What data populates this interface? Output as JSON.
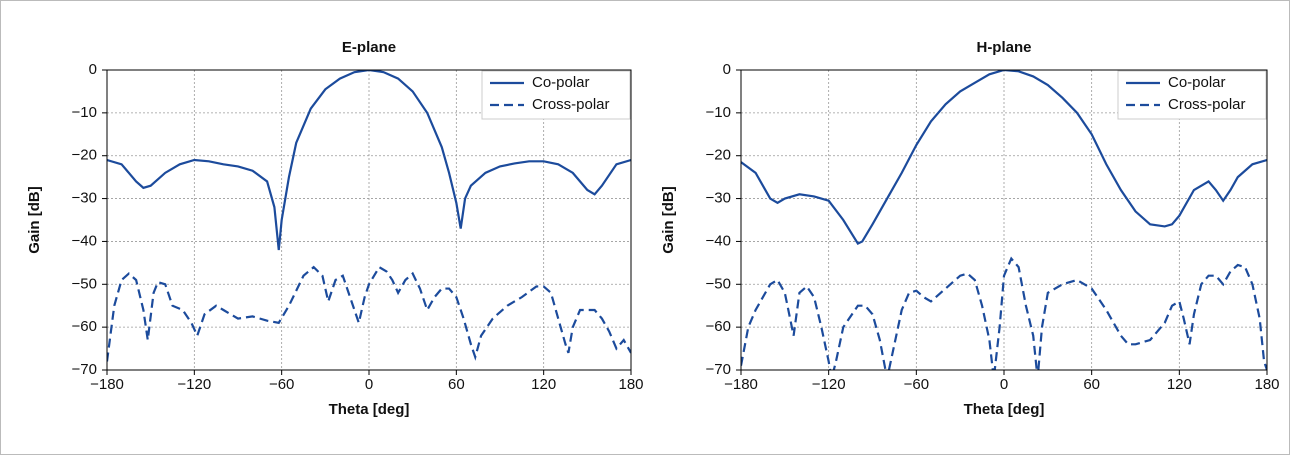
{
  "chart_data": [
    {
      "type": "line",
      "title": "E-plane",
      "xlabel": "Theta [deg]",
      "ylabel": "Gain [dB]",
      "xlim": [
        -180,
        180
      ],
      "ylim": [
        -70,
        0
      ],
      "xticks": [
        {
          "value": -180,
          "label": "−180"
        },
        {
          "value": -120,
          "label": "−120"
        },
        {
          "value": -60,
          "label": "−60"
        },
        0,
        60,
        120,
        180
      ],
      "yticks": [
        0,
        {
          "value": -10,
          "label": "−10"
        },
        {
          "value": -20,
          "label": "−20"
        },
        {
          "value": -30,
          "label": "−30"
        },
        {
          "value": -40,
          "label": "−40"
        },
        {
          "value": -50,
          "label": "−50"
        },
        {
          "value": -60,
          "label": "−60"
        },
        {
          "value": -70,
          "label": "−70"
        }
      ],
      "grid": true,
      "legend": "upper right",
      "series": [
        {
          "name": "Co-polar",
          "color": "#1c4b9c",
          "dashed": false,
          "x": [
            -180,
            -170,
            -160,
            -155,
            -150,
            -140,
            -130,
            -120,
            -110,
            -100,
            -90,
            -80,
            -70,
            -65,
            -62,
            -60,
            -55,
            -50,
            -40,
            -30,
            -20,
            -10,
            0,
            10,
            20,
            30,
            40,
            50,
            55,
            60,
            63,
            66,
            70,
            80,
            90,
            100,
            110,
            120,
            130,
            140,
            150,
            155,
            160,
            170,
            180
          ],
          "values": [
            -21,
            -22,
            -26,
            -27.5,
            -27,
            -24,
            -22,
            -21,
            -21.3,
            -22,
            -22.5,
            -23.5,
            -26,
            -32,
            -42,
            -35,
            -25,
            -17,
            -9,
            -4.5,
            -2,
            -0.5,
            0,
            -0.5,
            -2,
            -5,
            -10,
            -18,
            -24,
            -31,
            -37,
            -30,
            -27,
            -24,
            -22.5,
            -21.8,
            -21.3,
            -21.3,
            -22,
            -24,
            -28,
            -29,
            -27,
            -22,
            -21
          ]
        },
        {
          "name": "Cross-polar",
          "color": "#1c4b9c",
          "dashed": true,
          "x": [
            -180,
            -175,
            -170,
            -165,
            -160,
            -155,
            -152,
            -148,
            -145,
            -140,
            -135,
            -128,
            -122,
            -118,
            -113,
            -105,
            -100,
            -90,
            -80,
            -70,
            -62,
            -55,
            -45,
            -38,
            -32,
            -28,
            -23,
            -18,
            -14,
            -7,
            -3,
            0,
            7,
            12,
            16,
            20,
            25,
            30,
            35,
            40,
            45,
            50,
            55,
            60,
            65,
            70,
            73,
            77,
            85,
            95,
            105,
            115,
            120,
            125,
            130,
            135,
            137,
            140,
            145,
            155,
            160,
            165,
            170,
            175,
            180
          ],
          "values": [
            -68,
            -55,
            -49,
            -47.5,
            -49,
            -56,
            -63,
            -52,
            -49.5,
            -50,
            -55,
            -56,
            -59,
            -62,
            -57,
            -55,
            -56,
            -58,
            -57.5,
            -58.5,
            -59,
            -55,
            -48,
            -46,
            -48,
            -54,
            -49,
            -48,
            -52,
            -59,
            -53,
            -50,
            -46,
            -47,
            -49,
            -52,
            -49,
            -47.5,
            -51,
            -56,
            -53,
            -51,
            -51,
            -53,
            -58,
            -64,
            -67,
            -62,
            -58,
            -55,
            -53,
            -50.5,
            -50.5,
            -52,
            -58,
            -64,
            -66,
            -60,
            -56,
            -56,
            -58,
            -61,
            -65,
            -63,
            -66
          ]
        }
      ]
    },
    {
      "type": "line",
      "title": "H-plane",
      "xlabel": "Theta [deg]",
      "ylabel": "Gain [dB]",
      "xlim": [
        -180,
        180
      ],
      "ylim": [
        -70,
        0
      ],
      "xticks": [
        {
          "value": -180,
          "label": "−180"
        },
        {
          "value": -120,
          "label": "−120"
        },
        {
          "value": -60,
          "label": "−60"
        },
        0,
        60,
        120,
        180
      ],
      "yticks": [
        0,
        {
          "value": -10,
          "label": "−10"
        },
        {
          "value": -20,
          "label": "−20"
        },
        {
          "value": -30,
          "label": "−30"
        },
        {
          "value": -40,
          "label": "−40"
        },
        {
          "value": -50,
          "label": "−50"
        },
        {
          "value": -60,
          "label": "−60"
        },
        {
          "value": -70,
          "label": "−70"
        }
      ],
      "grid": true,
      "legend": "upper right",
      "series": [
        {
          "name": "Co-polar",
          "color": "#1c4b9c",
          "dashed": false,
          "x": [
            -180,
            -170,
            -160,
            -155,
            -150,
            -140,
            -130,
            -120,
            -110,
            -100,
            -97,
            -90,
            -80,
            -70,
            -60,
            -50,
            -40,
            -30,
            -20,
            -10,
            0,
            10,
            20,
            30,
            40,
            50,
            60,
            70,
            80,
            90,
            100,
            110,
            115,
            120,
            130,
            140,
            145,
            150,
            155,
            160,
            170,
            180
          ],
          "values": [
            -21.5,
            -24,
            -30,
            -31,
            -30,
            -29,
            -29.5,
            -30.5,
            -35,
            -40.5,
            -40,
            -36,
            -30,
            -24,
            -17.5,
            -12,
            -8,
            -5,
            -3,
            -1,
            0,
            -0.3,
            -1.5,
            -3.5,
            -6.5,
            -10,
            -15,
            -22,
            -28,
            -33,
            -36,
            -36.5,
            -36,
            -34,
            -28,
            -26,
            -28,
            -30.5,
            -28,
            -25,
            -22,
            -21
          ]
        },
        {
          "name": "Cross-polar",
          "color": "#1c4b9c",
          "dashed": true,
          "x": [
            -180,
            -175,
            -170,
            -160,
            -155,
            -150,
            -147,
            -144,
            -140,
            -135,
            -130,
            -125,
            -120,
            -118,
            -115,
            -110,
            -100,
            -95,
            -90,
            -85,
            -80,
            -75,
            -70,
            -65,
            -60,
            -55,
            -50,
            -40,
            -30,
            -25,
            -20,
            -15,
            -10,
            -7,
            -3,
            0,
            5,
            10,
            15,
            20,
            23,
            26,
            30,
            40,
            50,
            60,
            70,
            80,
            85,
            90,
            100,
            110,
            115,
            120,
            123,
            127,
            130,
            135,
            140,
            145,
            150,
            155,
            160,
            165,
            170,
            175,
            178,
            180
          ],
          "values": [
            -69,
            -60,
            -56,
            -50,
            -49,
            -52,
            -57,
            -62,
            -52,
            -50.5,
            -53,
            -60,
            -68,
            -72,
            -68,
            -60,
            -55,
            -55,
            -57,
            -63,
            -72,
            -64,
            -56,
            -52,
            -51.5,
            -53,
            -54,
            -51,
            -48,
            -47.5,
            -49,
            -55,
            -63,
            -72,
            -60,
            -48,
            -44,
            -46,
            -55,
            -62,
            -72,
            -60,
            -52,
            -50,
            -49,
            -51,
            -56,
            -62,
            -64,
            -64,
            -63,
            -59,
            -55,
            -54,
            -58,
            -64,
            -57,
            -50,
            -48,
            -48,
            -50,
            -47,
            -45.5,
            -46,
            -50,
            -58,
            -68,
            -70
          ]
        }
      ]
    }
  ]
}
